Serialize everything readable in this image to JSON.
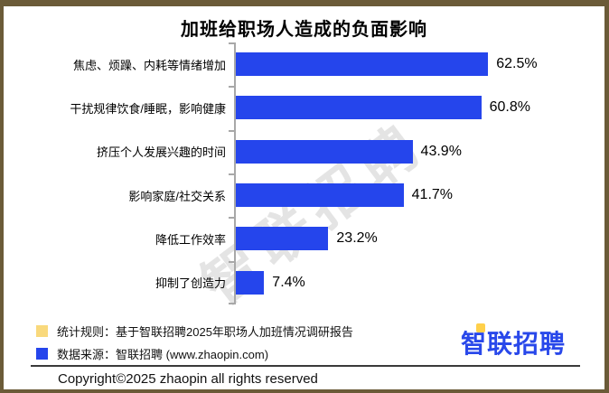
{
  "title": "加班给职场人造成的负面影响",
  "watermark": {
    "text": "智联招聘"
  },
  "chart_data": {
    "type": "bar",
    "orientation": "horizontal",
    "title": "加班给职场人造成的负面影响",
    "categories": [
      "焦虑、烦躁、内耗等情绪增加",
      "干扰规律饮食/睡眠，影响健康",
      "挤压个人发展兴趣的时间",
      "影响家庭/社交关系",
      "降低工作效率",
      "抑制了创造力"
    ],
    "values": [
      62.5,
      60.8,
      43.9,
      41.7,
      23.2,
      7.4
    ],
    "value_labels": [
      "62.5%",
      "60.8%",
      "43.9%",
      "41.7%",
      "23.2%",
      "7.4%"
    ],
    "xlim": [
      0,
      85
    ],
    "grid": false,
    "value_label_position": "right-of-bar",
    "bar_color": "#2545ec",
    "axis_color": "#a8a8a8"
  },
  "footer": {
    "legend": [
      {
        "color": "#f9d97c",
        "label": "统计规则：基于智联招聘2025年职场人加班情况调研报告"
      },
      {
        "color": "#2545ec",
        "label": "数据来源：智联招聘 (www.zhaopin.com)"
      }
    ],
    "logo_text": "智联招聘",
    "logo_color": "#2948ea",
    "logo_accent_color": "#ffd04a",
    "copyright": "Copyright©2025 zhaopin all rights reserved"
  },
  "colors": {
    "frame_border": "#6b5b38",
    "background": "#ffffff",
    "bar": "#2545ec",
    "legend_yellow": "#f9d97c",
    "watermark": "#cfcfcf",
    "divider": "#3a3a3a",
    "text": "#111111"
  }
}
